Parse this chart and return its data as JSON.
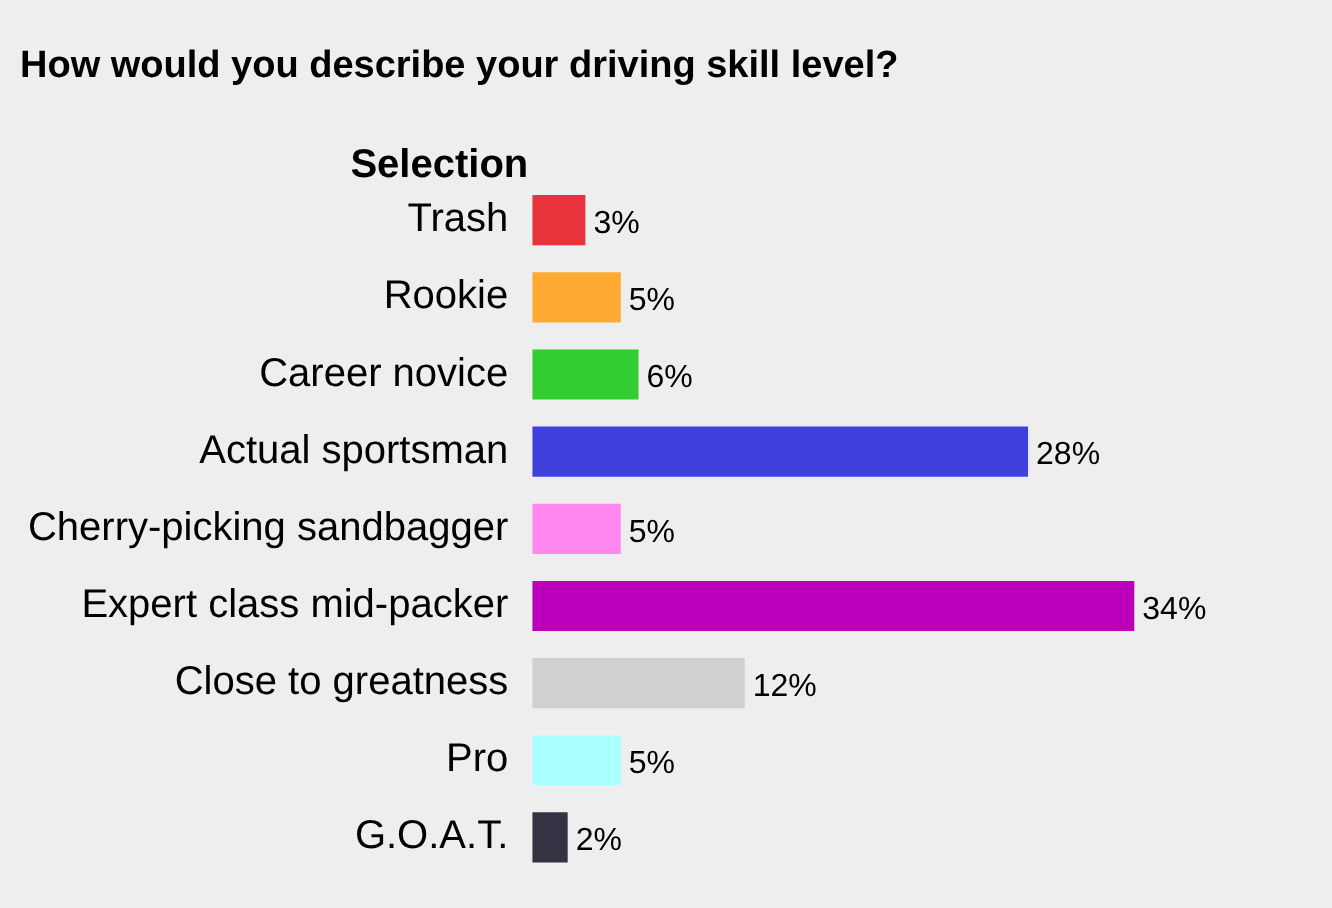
{
  "chart_data": {
    "type": "bar",
    "orientation": "horizontal",
    "title": "How would you describe your driving skill level?",
    "ylabel": "Selection",
    "categories": [
      "Trash",
      "Rookie",
      "Career novice",
      "Actual sportsman",
      "Cherry-picking sandbagger",
      "Expert class mid-packer",
      "Close to greatness",
      "Pro",
      "G.O.A.T."
    ],
    "values": [
      3,
      5,
      6,
      28,
      5,
      34,
      12,
      5,
      2
    ],
    "value_labels": [
      "3%",
      "5%",
      "6%",
      "28%",
      "5%",
      "34%",
      "12%",
      "5%",
      "2%"
    ],
    "colors": [
      "#e8333a",
      "#ffaa33",
      "#33cc33",
      "#4040dd",
      "#ff88ee",
      "#bb00bb",
      "#d0d0d0",
      "#aaffff",
      "#333344"
    ],
    "legend": false,
    "grid": false
  }
}
